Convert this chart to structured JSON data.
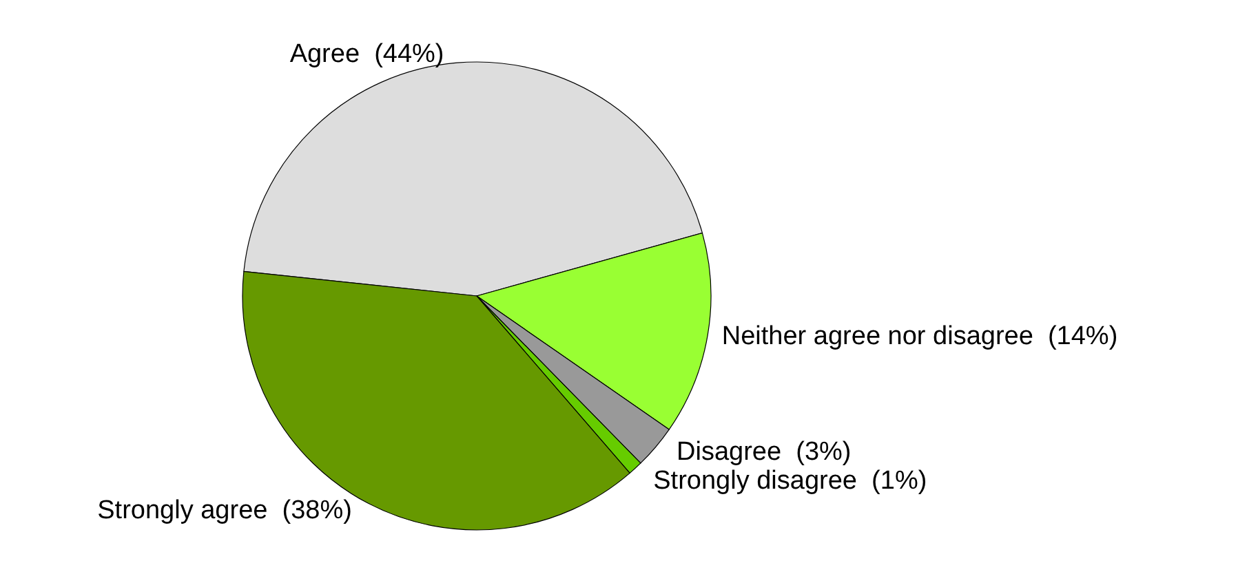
{
  "chart_data": {
    "type": "pie",
    "categories": [
      "Agree",
      "Neither agree nor disagree",
      "Disagree",
      "Strongly disagree",
      "Strongly agree"
    ],
    "values": [
      44,
      14,
      3,
      1,
      38
    ],
    "colors": [
      "#dddddd",
      "#99ff33",
      "#999999",
      "#66cc00",
      "#669900"
    ],
    "value_labels": [
      "(44%)",
      "(14%)",
      "(3%)",
      "(1%)",
      "(38%)"
    ]
  }
}
